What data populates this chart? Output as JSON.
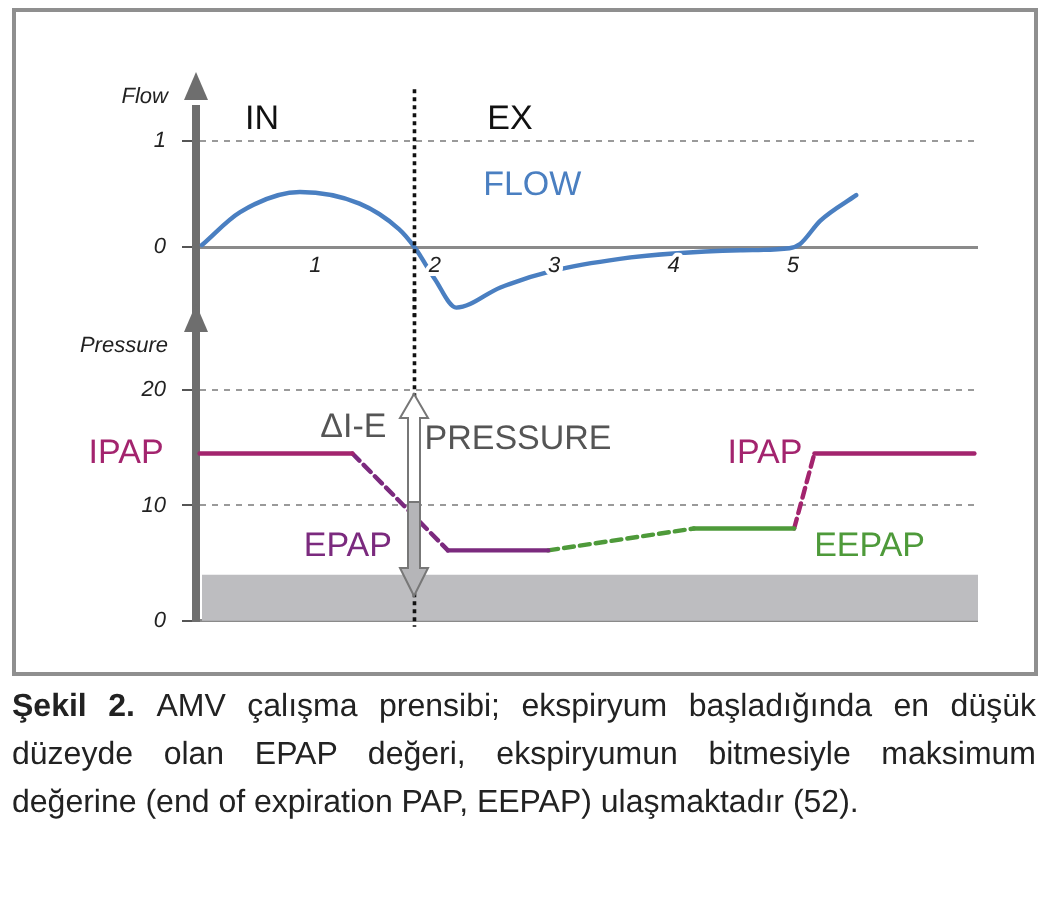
{
  "chart_data": [
    {
      "type": "line",
      "ylabel": "Flow",
      "x": [
        0.05,
        0.37,
        0.87,
        1.37,
        1.7,
        1.83,
        2.0,
        2.18,
        2.55,
        3.0,
        3.55,
        4.0,
        4.56,
        4.97,
        5.06,
        5.23,
        5.53
      ],
      "xlim": [
        0,
        6.55
      ],
      "xticks": [
        1,
        2,
        3,
        4,
        5
      ],
      "ylim": [
        -0.6,
        1.3
      ],
      "yticks": [
        0,
        1
      ],
      "grid": "y",
      "series": [
        {
          "name": "FLOW",
          "color": "#4a7fc1",
          "values": [
            0.02,
            0.33,
            0.52,
            0.41,
            0.17,
            0,
            -0.3,
            -0.57,
            -0.38,
            -0.22,
            -0.11,
            -0.06,
            -0.03,
            -0.01,
            0.03,
            0.25,
            0.49
          ]
        }
      ],
      "ref_lines": [
        {
          "axis": "x",
          "value": 1.83,
          "color": "#111111",
          "line_style": "dotted"
        }
      ],
      "annotations": [
        "IN",
        "EX"
      ]
    },
    {
      "type": "line",
      "ylabel": "Pressure",
      "xlim": [
        0,
        6.55
      ],
      "ylim": [
        0,
        27
      ],
      "yticks": [
        0,
        10,
        20
      ],
      "grid": "y",
      "tick_labels": "y",
      "series": [
        {
          "name": "IPAP",
          "color": "#a3246e",
          "x": [
            0.03,
            1.31
          ],
          "values": [
            14.5,
            14.5
          ]
        },
        {
          "color": "#7b2a7e",
          "x": [
            1.31,
            2.11
          ],
          "values": [
            14.5,
            6.1
          ],
          "line_style": "dashed"
        },
        {
          "name": "EPAP",
          "color": "#7b2a7e",
          "x": [
            2.11,
            2.95
          ],
          "values": [
            6.1,
            6.1
          ]
        },
        {
          "color": "#4e9a3a",
          "x": [
            2.95,
            4.17
          ],
          "values": [
            6.1,
            8.0
          ],
          "line_style": "dashed"
        },
        {
          "name": "EEPAP",
          "color": "#4e9a3a",
          "x": [
            4.17,
            5.01
          ],
          "values": [
            8.0,
            8.0
          ]
        },
        {
          "color": "#a3246e",
          "x": [
            5.01,
            5.18
          ],
          "values": [
            8.0,
            14.5
          ],
          "line_style": "dashed"
        },
        {
          "name": "IPAP",
          "color": "#a3246e",
          "x": [
            5.18,
            6.52
          ],
          "values": [
            14.5,
            14.5
          ]
        }
      ],
      "ref_lines": [
        {
          "axis": "x",
          "value": 1.83,
          "color": "#111111",
          "line_style": "dotted"
        }
      ],
      "bands": [
        {
          "axis": "y",
          "from": 0,
          "to": 4,
          "color": "#bdbdc0"
        }
      ],
      "annotations": [
        {
          "text": "ΔI-E",
          "x": 1.83,
          "y": 16.7
        },
        "PRESSURE",
        "Şekil 2.",
        "AMV çalışma prensibi; ekspiryum başladığında en düşük düzeyde olan EPAP değeri, ekspiryumun bitmesiyle maksimum değerine (end of expiration PAP, EEPAP) ulaşmaktadır (52)."
      ]
    }
  ]
}
